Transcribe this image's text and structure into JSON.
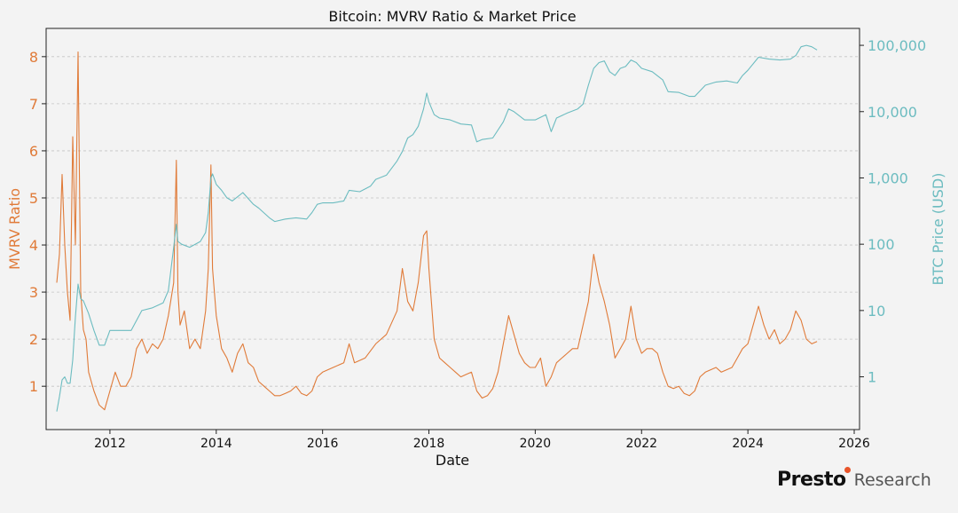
{
  "chart_data": {
    "type": "line",
    "title": "Bitcoin: MVRV Ratio & Market Price",
    "xlabel": "Date",
    "ylabel_left": "MVRV Ratio",
    "ylabel_right": "BTC Price (USD)",
    "xlim": [
      2010.8,
      2026.1
    ],
    "ylim_left": [
      0.08,
      8.6
    ],
    "ylim_right_log": [
      0.16,
      180000
    ],
    "x_ticks": [
      2012,
      2014,
      2016,
      2018,
      2020,
      2022,
      2024,
      2026
    ],
    "x_tick_labels": [
      "2012",
      "2014",
      "2016",
      "2018",
      "2020",
      "2022",
      "2024",
      "2026"
    ],
    "y_left_ticks": [
      1,
      2,
      3,
      4,
      5,
      6,
      7,
      8
    ],
    "y_left_tick_labels": [
      "1",
      "2",
      "3",
      "4",
      "5",
      "6",
      "7",
      "8"
    ],
    "y_right_ticks": [
      1,
      10,
      100,
      1000,
      10000,
      100000
    ],
    "y_right_tick_labels": [
      "1",
      "10",
      "100",
      "1,000",
      "10,000",
      "100,000"
    ],
    "grid": "horizontal-dashed",
    "colors": {
      "mvrv": "#e07b39",
      "price": "#6cbcc0",
      "axis": "#222222",
      "grid": "#c4c4c4"
    },
    "series": [
      {
        "name": "MVRV Ratio",
        "axis": "left",
        "x": [
          2011.0,
          2011.05,
          2011.1,
          2011.15,
          2011.2,
          2011.25,
          2011.3,
          2011.35,
          2011.4,
          2011.45,
          2011.5,
          2011.55,
          2011.6,
          2011.7,
          2011.8,
          2011.9,
          2012.0,
          2012.1,
          2012.2,
          2012.3,
          2012.4,
          2012.5,
          2012.6,
          2012.7,
          2012.8,
          2012.9,
          2013.0,
          2013.1,
          2013.2,
          2013.25,
          2013.28,
          2013.32,
          2013.4,
          2013.5,
          2013.6,
          2013.7,
          2013.8,
          2013.85,
          2013.9,
          2013.93,
          2014.0,
          2014.1,
          2014.2,
          2014.3,
          2014.4,
          2014.5,
          2014.6,
          2014.7,
          2014.8,
          2014.9,
          2015.0,
          2015.1,
          2015.2,
          2015.3,
          2015.4,
          2015.5,
          2015.6,
          2015.7,
          2015.8,
          2015.9,
          2016.0,
          2016.2,
          2016.4,
          2016.5,
          2016.6,
          2016.8,
          2017.0,
          2017.2,
          2017.4,
          2017.5,
          2017.6,
          2017.7,
          2017.8,
          2017.9,
          2017.96,
          2018.0,
          2018.1,
          2018.2,
          2018.3,
          2018.4,
          2018.5,
          2018.6,
          2018.7,
          2018.8,
          2018.9,
          2019.0,
          2019.1,
          2019.2,
          2019.3,
          2019.4,
          2019.5,
          2019.6,
          2019.7,
          2019.8,
          2019.9,
          2020.0,
          2020.1,
          2020.2,
          2020.3,
          2020.4,
          2020.5,
          2020.6,
          2020.7,
          2020.8,
          2020.9,
          2021.0,
          2021.1,
          2021.15,
          2021.2,
          2021.3,
          2021.4,
          2021.5,
          2021.6,
          2021.7,
          2021.8,
          2021.9,
          2022.0,
          2022.1,
          2022.2,
          2022.3,
          2022.4,
          2022.5,
          2022.6,
          2022.7,
          2022.8,
          2022.9,
          2023.0,
          2023.1,
          2023.2,
          2023.3,
          2023.4,
          2023.5,
          2023.6,
          2023.7,
          2023.8,
          2023.9,
          2024.0,
          2024.1,
          2024.2,
          2024.3,
          2024.4,
          2024.5,
          2024.6,
          2024.7,
          2024.8,
          2024.9,
          2025.0,
          2025.1,
          2025.2,
          2025.3
        ],
        "values": [
          3.2,
          3.8,
          5.5,
          4.0,
          3.0,
          2.4,
          6.3,
          4.0,
          8.1,
          3.0,
          2.2,
          2.0,
          1.3,
          0.9,
          0.6,
          0.5,
          0.9,
          1.3,
          1.0,
          1.0,
          1.2,
          1.8,
          2.0,
          1.7,
          1.9,
          1.8,
          2.0,
          2.5,
          3.2,
          5.8,
          3.0,
          2.3,
          2.6,
          1.8,
          2.0,
          1.8,
          2.6,
          3.5,
          5.7,
          3.5,
          2.5,
          1.8,
          1.6,
          1.3,
          1.7,
          1.9,
          1.5,
          1.4,
          1.1,
          1.0,
          0.9,
          0.8,
          0.8,
          0.85,
          0.9,
          1.0,
          0.85,
          0.8,
          0.9,
          1.2,
          1.3,
          1.4,
          1.5,
          1.9,
          1.5,
          1.6,
          1.9,
          2.1,
          2.6,
          3.5,
          2.8,
          2.6,
          3.2,
          4.2,
          4.3,
          3.5,
          2.0,
          1.6,
          1.5,
          1.4,
          1.3,
          1.2,
          1.25,
          1.3,
          0.9,
          0.75,
          0.8,
          0.95,
          1.3,
          1.9,
          2.5,
          2.1,
          1.7,
          1.5,
          1.4,
          1.4,
          1.6,
          1.0,
          1.2,
          1.5,
          1.6,
          1.7,
          1.8,
          1.8,
          2.3,
          2.8,
          3.8,
          3.5,
          3.2,
          2.8,
          2.3,
          1.6,
          1.8,
          2.0,
          2.7,
          2.0,
          1.7,
          1.8,
          1.8,
          1.7,
          1.3,
          1.0,
          0.95,
          1.0,
          0.85,
          0.8,
          0.9,
          1.2,
          1.3,
          1.35,
          1.4,
          1.3,
          1.35,
          1.4,
          1.6,
          1.8,
          1.9,
          2.3,
          2.7,
          2.3,
          2.0,
          2.2,
          1.9,
          2.0,
          2.2,
          2.6,
          2.4,
          2.0,
          1.9,
          1.95
        ]
      },
      {
        "name": "BTC Price (USD)",
        "axis": "right",
        "scale": "log",
        "x": [
          2011.0,
          2011.05,
          2011.1,
          2011.15,
          2011.2,
          2011.25,
          2011.3,
          2011.35,
          2011.4,
          2011.45,
          2011.5,
          2011.6,
          2011.7,
          2011.8,
          2011.9,
          2012.0,
          2012.2,
          2012.4,
          2012.6,
          2012.8,
          2013.0,
          2013.1,
          2013.2,
          2013.25,
          2013.28,
          2013.35,
          2013.5,
          2013.7,
          2013.8,
          2013.85,
          2013.9,
          2013.93,
          2014.0,
          2014.1,
          2014.2,
          2014.3,
          2014.5,
          2014.7,
          2014.8,
          2015.0,
          2015.1,
          2015.3,
          2015.5,
          2015.7,
          2015.8,
          2015.9,
          2016.0,
          2016.2,
          2016.4,
          2016.5,
          2016.7,
          2016.9,
          2017.0,
          2017.2,
          2017.4,
          2017.5,
          2017.6,
          2017.7,
          2017.8,
          2017.9,
          2017.96,
          2018.0,
          2018.1,
          2018.2,
          2018.4,
          2018.6,
          2018.8,
          2018.9,
          2019.0,
          2019.2,
          2019.4,
          2019.5,
          2019.6,
          2019.8,
          2020.0,
          2020.2,
          2020.3,
          2020.4,
          2020.6,
          2020.8,
          2020.9,
          2021.0,
          2021.1,
          2021.2,
          2021.3,
          2021.4,
          2021.5,
          2021.6,
          2021.7,
          2021.8,
          2021.9,
          2022.0,
          2022.2,
          2022.4,
          2022.5,
          2022.7,
          2022.9,
          2023.0,
          2023.2,
          2023.4,
          2023.6,
          2023.8,
          2023.9,
          2024.0,
          2024.2,
          2024.4,
          2024.6,
          2024.8,
          2024.9,
          2025.0,
          2025.1,
          2025.2,
          2025.3
        ],
        "values": [
          0.3,
          0.5,
          0.9,
          1.0,
          0.8,
          0.8,
          1.8,
          8.0,
          25.0,
          15.0,
          14.0,
          9.0,
          5.0,
          3.0,
          3.0,
          5.0,
          5.0,
          5.0,
          10.0,
          11.0,
          13.0,
          20.0,
          90.0,
          200.0,
          110.0,
          100.0,
          90.0,
          110.0,
          150.0,
          300.0,
          1000.0,
          1150.0,
          800.0,
          650.0,
          500.0,
          450.0,
          600.0,
          400.0,
          350.0,
          250.0,
          220.0,
          240.0,
          250.0,
          240.0,
          300.0,
          400.0,
          420.0,
          420.0,
          450.0,
          650.0,
          620.0,
          750.0,
          950.0,
          1100.0,
          1800.0,
          2500.0,
          4000.0,
          4500.0,
          6000.0,
          11000.0,
          19000.0,
          14000.0,
          9000.0,
          8000.0,
          7500.0,
          6500.0,
          6300.0,
          3500.0,
          3800.0,
          4000.0,
          7000.0,
          11000.0,
          10000.0,
          7500.0,
          7500.0,
          9000.0,
          5000.0,
          8000.0,
          9500.0,
          11000.0,
          13000.0,
          25000.0,
          45000.0,
          55000.0,
          58000.0,
          40000.0,
          35000.0,
          45000.0,
          48000.0,
          60000.0,
          55000.0,
          45000.0,
          40000.0,
          30000.0,
          20000.0,
          19500.0,
          17000.0,
          17000.0,
          25000.0,
          28000.0,
          29000.0,
          27000.0,
          35000.0,
          42000.0,
          66000.0,
          62000.0,
          60000.0,
          62000.0,
          70000.0,
          95000.0,
          100000.0,
          95000.0,
          85000.0
        ]
      }
    ]
  },
  "brand": {
    "name": "Presto",
    "suffix": "Research"
  }
}
